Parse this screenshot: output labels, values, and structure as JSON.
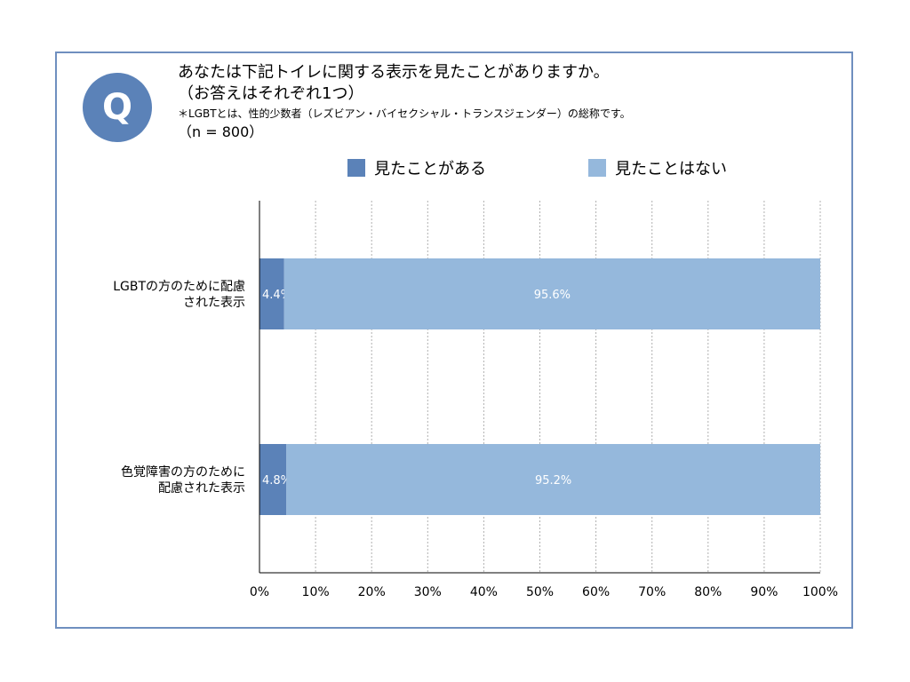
{
  "question": {
    "badge": "Q",
    "line1": "あなたは下記トイレに関する表示を見たことがありますか。",
    "line2": "（お答えはそれぞれ1つ）",
    "note": "＊LGBTとは、性的少数者（レズビアン・バイセクシャル・トランスジェンダー）の総称です。",
    "sample": "（n = 800）"
  },
  "colors": {
    "seen": "#5b82b8",
    "not_seen": "#95b8dc",
    "frame": "#6f8fbf",
    "grid": "#b0b0b0"
  },
  "chart_data": {
    "type": "bar",
    "orientation": "horizontal",
    "stacked": true,
    "categories": [
      [
        "LGBTの方のために配慮",
        "された表示"
      ],
      [
        "色覚障害の方のために",
        "配慮された表示"
      ]
    ],
    "series": [
      {
        "name": "見たことがある",
        "values": [
          4.4,
          4.8
        ],
        "labels": [
          "4.4%",
          "4.8%"
        ]
      },
      {
        "name": "見たことはない",
        "values": [
          95.6,
          95.2
        ],
        "labels": [
          "95.6%",
          "95.2%"
        ]
      }
    ],
    "xlim": [
      0,
      100
    ],
    "xticks": [
      0,
      10,
      20,
      30,
      40,
      50,
      60,
      70,
      80,
      90,
      100
    ],
    "xtick_labels": [
      "0%",
      "10%",
      "20%",
      "30%",
      "40%",
      "50%",
      "60%",
      "70%",
      "80%",
      "90%",
      "100%"
    ],
    "grid": true,
    "legend_position": "top"
  }
}
